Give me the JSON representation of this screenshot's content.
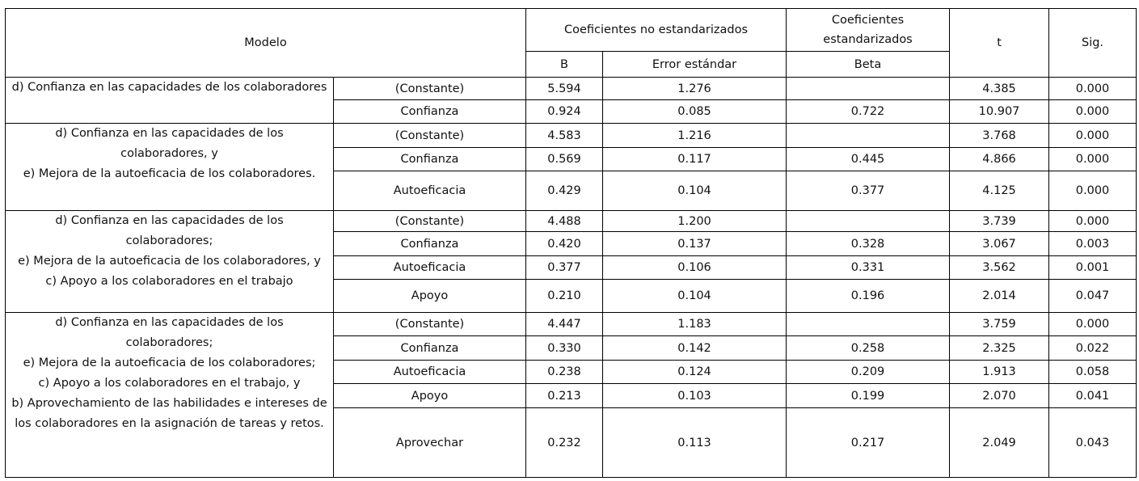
{
  "header": {
    "modelo": "Modelo",
    "unstd": "Coeficientes no estandarizados",
    "std": "Coeficientes estandarizados",
    "t": "t",
    "sig": "Sig.",
    "b": "B",
    "se": "Error estándar",
    "beta": "Beta"
  },
  "models": [
    {
      "description": [
        "d) Confianza en las capacidades de los colaboradores"
      ],
      "rows": [
        {
          "predictor": "(Constante)",
          "b": "5.594",
          "se": "1.276",
          "beta": null,
          "t": "4.385",
          "sig": "0.000"
        },
        {
          "predictor": "Confianza",
          "b": "0.924",
          "se": "0.085",
          "beta": "0.722",
          "t": "10.907",
          "sig": "0.000"
        }
      ]
    },
    {
      "description": [
        "d) Confianza en las capacidades de los colaboradores, y",
        "e) Mejora de la autoeficacia de los colaboradores."
      ],
      "rows": [
        {
          "predictor": "(Constante)",
          "b": "4.583",
          "se": "1.216",
          "beta": null,
          "t": "3.768",
          "sig": "0.000"
        },
        {
          "predictor": "Confianza",
          "b": "0.569",
          "se": "0.117",
          "beta": "0.445",
          "t": "4.866",
          "sig": "0.000"
        },
        {
          "predictor": "Autoeficacia",
          "b": "0.429",
          "se": "0.104",
          "beta": "0.377",
          "t": "4.125",
          "sig": "0.000"
        }
      ]
    },
    {
      "description": [
        "d) Confianza en las capacidades de los colaboradores;",
        "e) Mejora de la autoeficacia de los colaboradores, y",
        "c) Apoyo a los colaboradores en el trabajo"
      ],
      "rows": [
        {
          "predictor": "(Constante)",
          "b": "4.488",
          "se": "1.200",
          "beta": null,
          "t": "3.739",
          "sig": "0.000"
        },
        {
          "predictor": "Confianza",
          "b": "0.420",
          "se": "0.137",
          "beta": "0.328",
          "t": "3.067",
          "sig": "0.003"
        },
        {
          "predictor": "Autoeficacia",
          "b": "0.377",
          "se": "0.106",
          "beta": "0.331",
          "t": "3.562",
          "sig": "0.001"
        },
        {
          "predictor": "Apoyo",
          "b": "0.210",
          "se": "0.104",
          "beta": "0.196",
          "t": "2.014",
          "sig": "0.047"
        }
      ]
    },
    {
      "description": [
        "d) Confianza en las capacidades de los colaboradores;",
        "e) Mejora de la autoeficacia de los colaboradores;",
        "c) Apoyo a los colaboradores en el trabajo, y",
        "b) Aprovechamiento de las habilidades e intereses de los colaboradores en la asignación de tareas y retos."
      ],
      "rows": [
        {
          "predictor": "(Constante)",
          "b": "4.447",
          "se": "1.183",
          "beta": null,
          "t": "3.759",
          "sig": "0.000"
        },
        {
          "predictor": "Confianza",
          "b": "0.330",
          "se": "0.142",
          "beta": "0.258",
          "t": "2.325",
          "sig": "0.022"
        },
        {
          "predictor": "Autoeficacia",
          "b": "0.238",
          "se": "0.124",
          "beta": "0.209",
          "t": "1.913",
          "sig": "0.058"
        },
        {
          "predictor": "Apoyo",
          "b": "0.213",
          "se": "0.103",
          "beta": "0.199",
          "t": "2.070",
          "sig": "0.041"
        },
        {
          "predictor": "Aprovechar",
          "b": "0.232",
          "se": "0.113",
          "beta": "0.217",
          "t": "2.049",
          "sig": "0.043"
        }
      ]
    }
  ]
}
